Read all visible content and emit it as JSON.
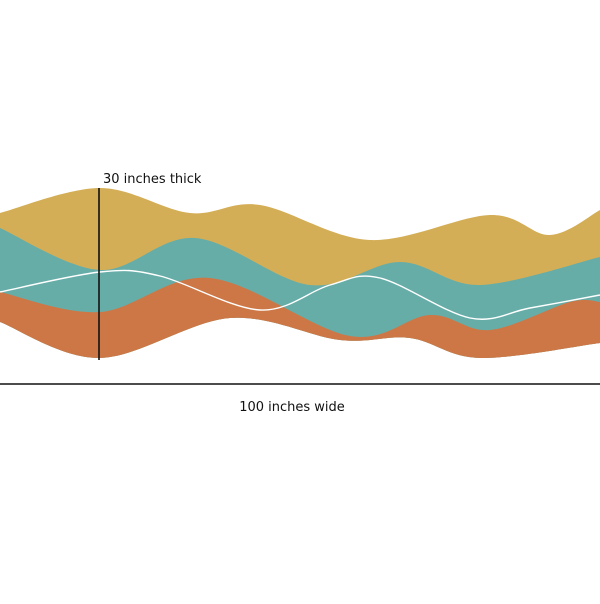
{
  "labels": {
    "thickness": "30 inches thick",
    "width": "100 inches wide"
  }
}
